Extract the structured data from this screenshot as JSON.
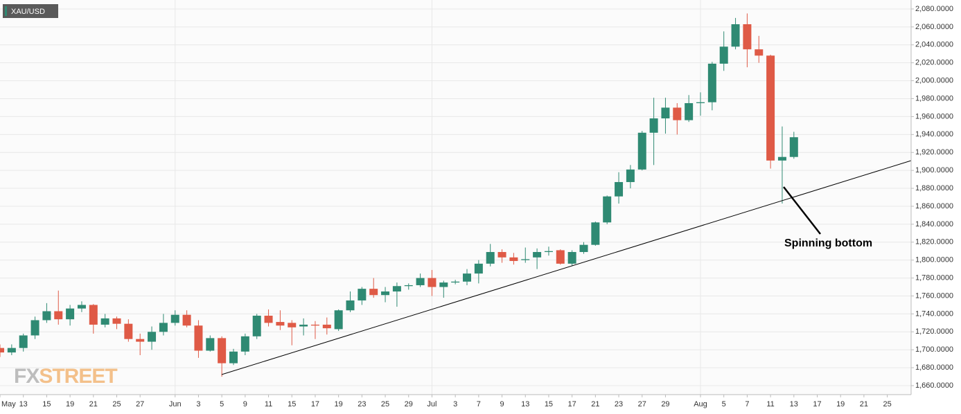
{
  "chart_data": {
    "type": "candlestick",
    "title": "XAU/USD",
    "logo": [
      "FX",
      "STREET"
    ],
    "annotation": "Spinning bottom",
    "up_color": "#2f8a73",
    "down_color": "#df5a46",
    "grid": true,
    "categories": [
      "May",
      null,
      "13",
      null,
      "15",
      null,
      "19",
      null,
      "21",
      null,
      "25",
      null,
      "27",
      null,
      null,
      "Jun",
      null,
      "3",
      null,
      "5",
      null,
      "9",
      null,
      "11",
      null,
      "15",
      null,
      "17",
      null,
      "19",
      null,
      "23",
      null,
      "25",
      null,
      "29",
      null,
      "Jul",
      null,
      "3",
      null,
      "7",
      null,
      "9",
      null,
      "13",
      null,
      "15",
      null,
      "17",
      null,
      "21",
      null,
      "23",
      null,
      "27",
      null,
      "29",
      null,
      null,
      "Aug",
      null,
      "5",
      null,
      "7",
      null,
      "11",
      null,
      "13",
      null,
      "17",
      null,
      "19",
      null,
      "21",
      null,
      "25",
      null,
      null
    ],
    "open": [
      1702,
      1697,
      1702,
      1716,
      1733,
      1743,
      1734,
      1746,
      1750,
      1728,
      1735,
      1729,
      1712,
      1709,
      1720,
      1730,
      1739,
      1727,
      1699,
      1713,
      1685,
      1698,
      1715,
      1738,
      1731,
      1730,
      1726,
      1728,
      1728,
      1723,
      1744,
      1755,
      1768,
      1761,
      1765,
      1771,
      1772,
      1780,
      1770,
      1775,
      1776,
      1785,
      1796,
      1809,
      1803,
      1800,
      1803,
      1809,
      1811,
      1796,
      1809,
      1817,
      1842,
      1871,
      1887,
      1901,
      1942,
      1958,
      1970,
      1956,
      1975,
      1976,
      2019,
      2038,
      2063,
      2035,
      2028,
      1911,
      1915,
      null,
      null,
      null,
      null,
      null,
      null,
      null,
      null,
      null,
      null
    ],
    "high": [
      1706,
      1706,
      1718,
      1737,
      1752,
      1766,
      1750,
      1754,
      1751,
      1740,
      1737,
      1734,
      1718,
      1726,
      1740,
      1744,
      1744,
      1733,
      1716,
      1715,
      1701,
      1718,
      1740,
      1745,
      1744,
      1733,
      1735,
      1732,
      1736,
      1745,
      1765,
      1770,
      1780,
      1770,
      1775,
      1774,
      1785,
      1789,
      1777,
      1778,
      1790,
      1800,
      1818,
      1812,
      1808,
      1814,
      1813,
      1815,
      1812,
      1811,
      1820,
      1843,
      1872,
      1898,
      1906,
      1944,
      1981,
      1981,
      1975,
      1984,
      1987,
      2021,
      2055,
      2070,
      2075,
      2050,
      2029,
      1949,
      1943,
      null,
      null,
      null,
      null,
      null,
      null,
      null,
      null,
      null,
      null
    ],
    "low": [
      1692,
      1694,
      1698,
      1712,
      1730,
      1728,
      1727,
      1742,
      1718,
      1725,
      1723,
      1709,
      1694,
      1700,
      1716,
      1727,
      1725,
      1691,
      1698,
      1670,
      1683,
      1694,
      1712,
      1726,
      1722,
      1705,
      1716,
      1712,
      1717,
      1721,
      1742,
      1750,
      1758,
      1753,
      1748,
      1767,
      1770,
      1760,
      1758,
      1773,
      1772,
      1774,
      1793,
      1797,
      1795,
      1797,
      1790,
      1805,
      1795,
      1794,
      1807,
      1816,
      1840,
      1863,
      1880,
      1900,
      1906,
      1941,
      1940,
      1954,
      1961,
      1967,
      2011,
      2035,
      2015,
      2020,
      1902,
      1863,
      1913,
      null,
      null,
      null,
      null,
      null,
      null,
      null,
      null,
      null,
      null
    ],
    "close": [
      1697,
      1702,
      1716,
      1733,
      1743,
      1734,
      1746,
      1750,
      1728,
      1735,
      1729,
      1712,
      1709,
      1720,
      1730,
      1739,
      1727,
      1699,
      1713,
      1685,
      1698,
      1715,
      1738,
      1730,
      1727,
      1725,
      1728,
      1727,
      1724,
      1744,
      1755,
      1768,
      1761,
      1765,
      1771,
      1772,
      1780,
      1770,
      1775,
      1776,
      1785,
      1796,
      1809,
      1803,
      1799,
      1801,
      1809,
      1810,
      1796,
      1809,
      1817,
      1842,
      1871,
      1887,
      1901,
      1942,
      1958,
      1970,
      1956,
      1975,
      1976,
      2019,
      2038,
      2063,
      2035,
      2028,
      1911,
      1915,
      1937,
      null,
      null,
      null,
      null,
      null,
      null,
      null,
      null,
      null,
      null
    ],
    "ylim": [
      1650,
      2090
    ],
    "yticks": [
      {
        "value": 1660,
        "label": "1,660.0000"
      },
      {
        "value": 1680,
        "label": "1,680.0000"
      },
      {
        "value": 1700,
        "label": "1,700.0000"
      },
      {
        "value": 1720,
        "label": "1,720.0000"
      },
      {
        "value": 1740,
        "label": "1,740.0000"
      },
      {
        "value": 1760,
        "label": "1,760.0000"
      },
      {
        "value": 1780,
        "label": "1,780.0000"
      },
      {
        "value": 1800,
        "label": "1,800.0000"
      },
      {
        "value": 1820,
        "label": "1,820.0000"
      },
      {
        "value": 1840,
        "label": "1,840.0000"
      },
      {
        "value": 1860,
        "label": "1,860.0000"
      },
      {
        "value": 1880,
        "label": "1,880.0000"
      },
      {
        "value": 1900,
        "label": "1,900.0000"
      },
      {
        "value": 1920,
        "label": "1,920.0000"
      },
      {
        "value": 1940,
        "label": "1,940.0000"
      },
      {
        "value": 1960,
        "label": "1,960.0000"
      },
      {
        "value": 1980,
        "label": "1,980.0000"
      },
      {
        "value": 2000,
        "label": "2,000.0000"
      },
      {
        "value": 2020,
        "label": "2,020.0000"
      },
      {
        "value": 2040,
        "label": "2,040.0000"
      },
      {
        "value": 2060,
        "label": "2,060.0000"
      },
      {
        "value": 2080,
        "label": "2,080.0000"
      }
    ]
  }
}
